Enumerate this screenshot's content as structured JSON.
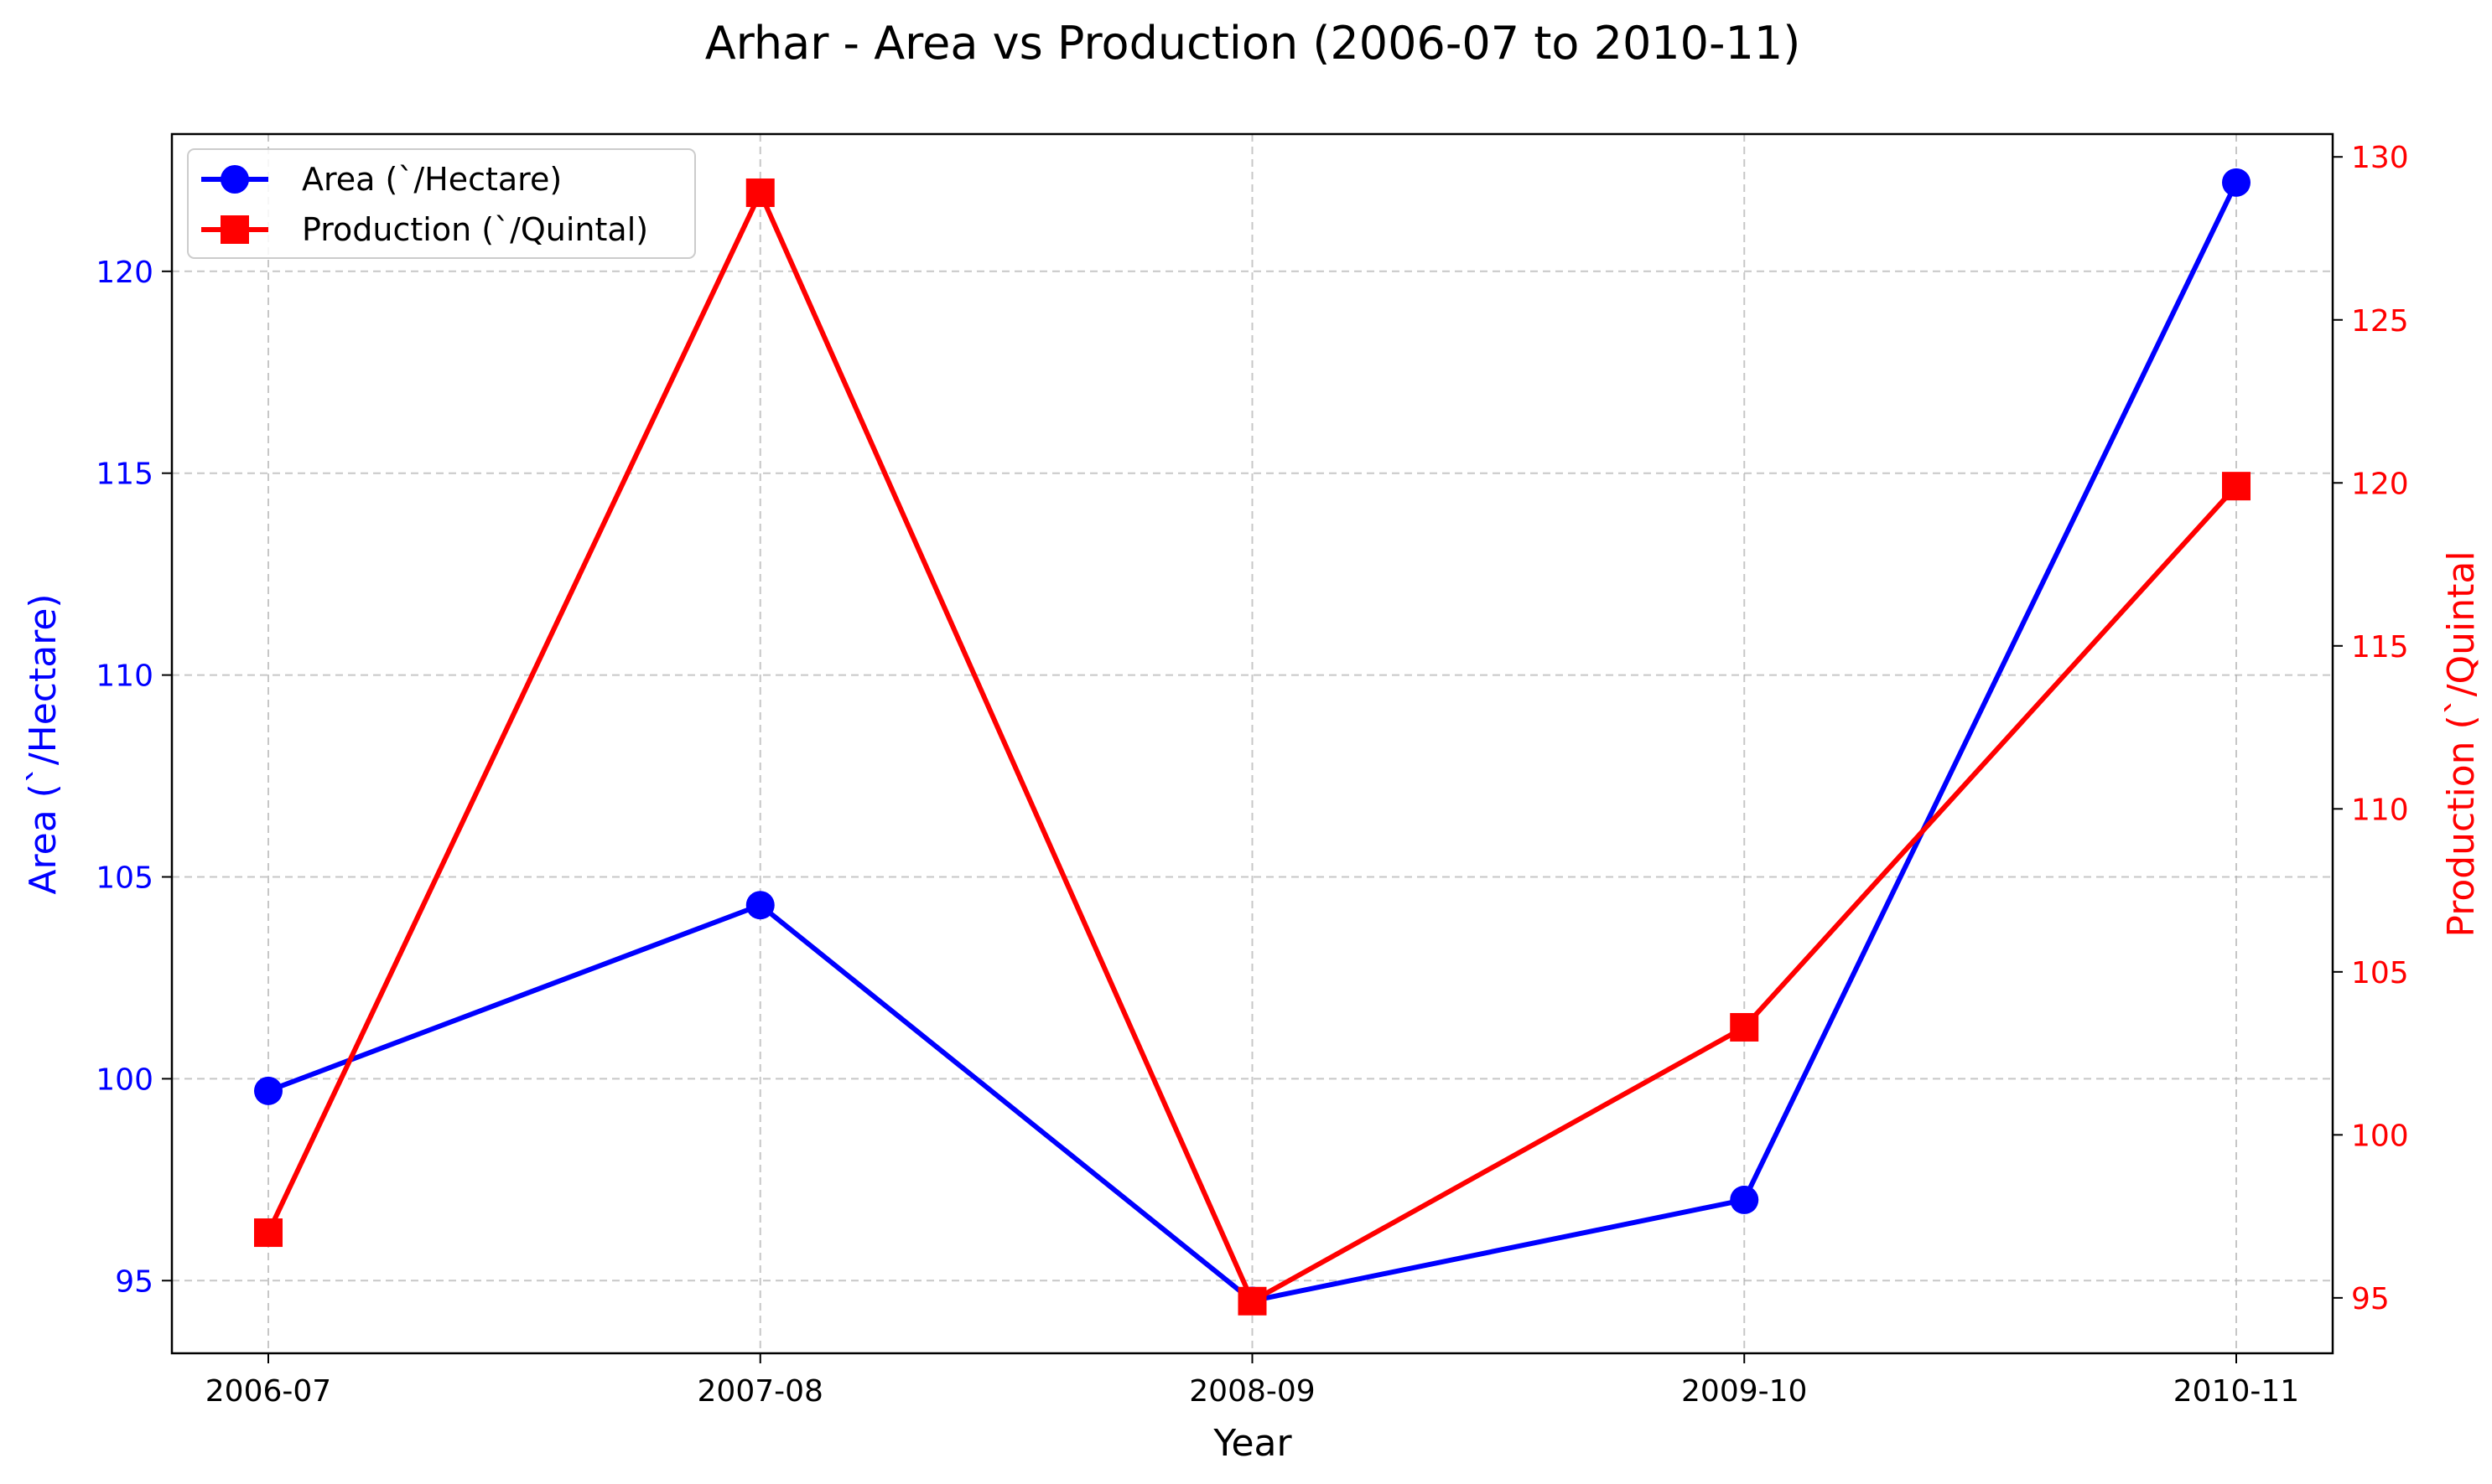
{
  "chart_data": {
    "type": "line",
    "title": "Arhar - Area vs Production (2006-07 to 2010-11)",
    "xlabel": "Year",
    "categories": [
      "2006-07",
      "2007-08",
      "2008-09",
      "2009-10",
      "2010-11"
    ],
    "grid": true,
    "legend_position": "top-left",
    "y_left": {
      "label": "Area (`/Hectare)",
      "color": "#0000ff",
      "ticks": [
        95,
        100,
        105,
        110,
        115,
        120
      ],
      "ylim": [
        93.2,
        123.4
      ]
    },
    "y_right": {
      "label": "Production (`/Quintal",
      "color": "#ff0000",
      "ticks": [
        95,
        100,
        105,
        110,
        115,
        120,
        125,
        130
      ],
      "ylim": [
        93.3,
        130.7
      ]
    },
    "series": [
      {
        "name": "Area (`/Hectare)",
        "axis": "left",
        "color": "#0000ff",
        "marker": "circle",
        "values": [
          99.7,
          104.3,
          94.5,
          97.0,
          122.2
        ]
      },
      {
        "name": "Production (`/Quintal)",
        "axis": "right",
        "color": "#ff0000",
        "marker": "square",
        "values": [
          97.0,
          128.9,
          94.9,
          103.3,
          119.9
        ]
      }
    ]
  }
}
